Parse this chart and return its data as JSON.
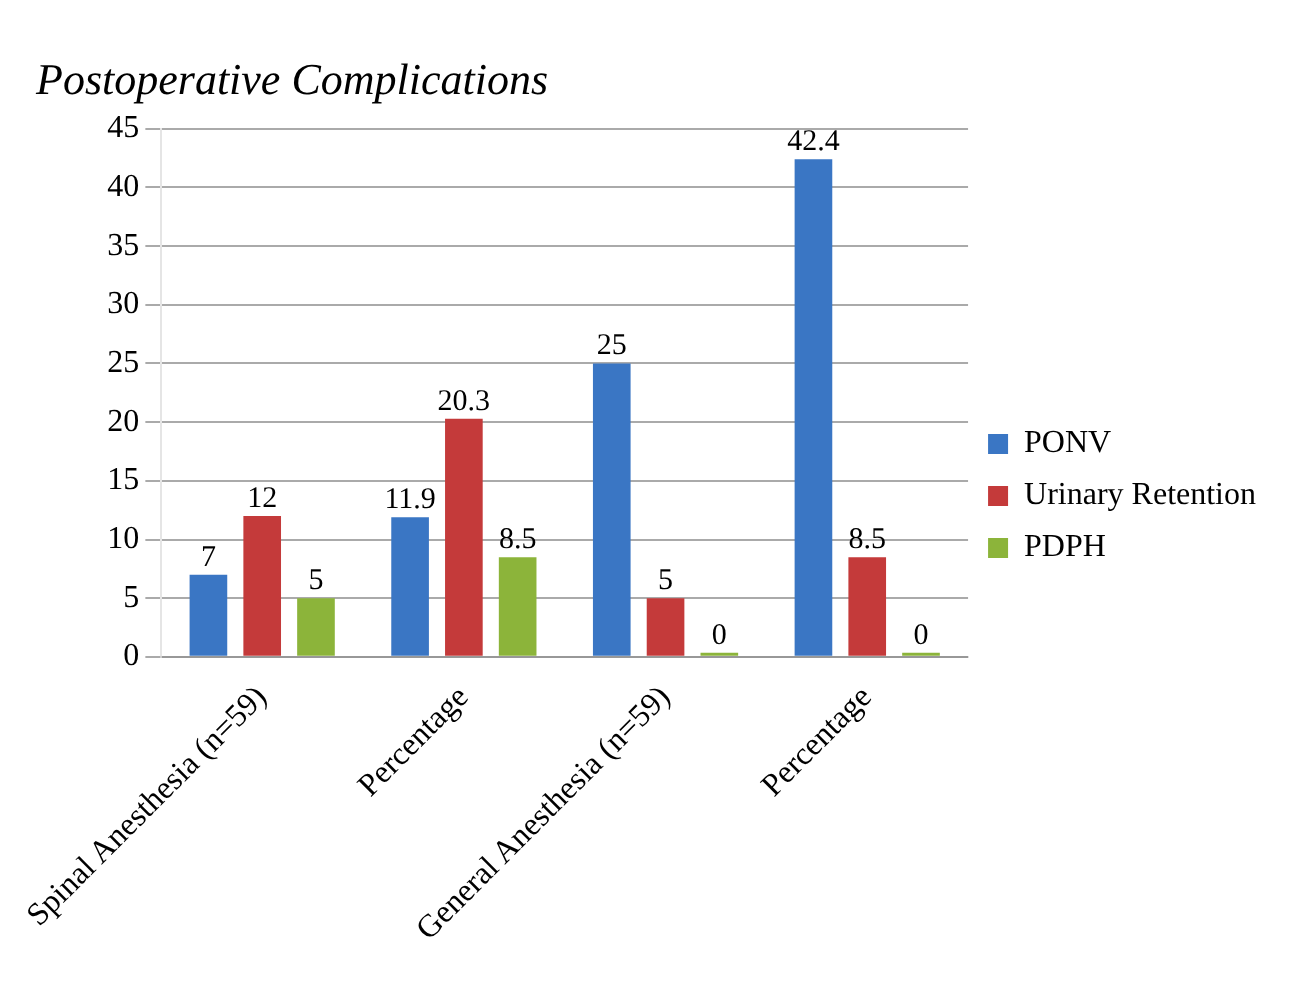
{
  "chart_data": {
    "type": "bar",
    "title": "Postoperative Complications",
    "categories": [
      "Spinal Anesthesia (n=59)",
      "Percentage",
      "General Anesthesia (n=59)",
      "Percentage"
    ],
    "series": [
      {
        "name": "PONV",
        "color": "#3a76c4",
        "values": [
          7,
          11.9,
          25,
          42.4
        ]
      },
      {
        "name": "Urinary Retention",
        "color": "#c43a3a",
        "values": [
          12,
          20.3,
          5,
          8.5
        ]
      },
      {
        "name": "PDPH",
        "color": "#8cb43a",
        "values": [
          5,
          8.5,
          0,
          0
        ]
      }
    ],
    "ylim": [
      0,
      45
    ],
    "yticks": [
      0,
      5,
      10,
      15,
      20,
      25,
      30,
      35,
      40,
      45
    ],
    "grid": "y",
    "legend": "right",
    "data_labels": true
  }
}
